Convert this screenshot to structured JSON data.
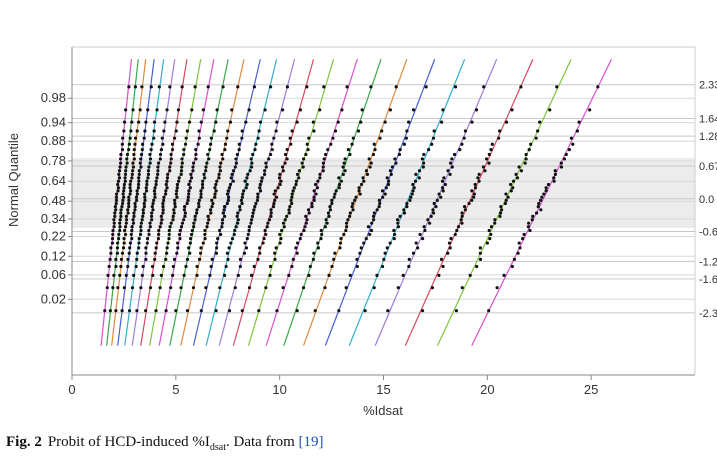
{
  "chart_data": {
    "type": "scatter",
    "xlabel": "%Idsat",
    "ylabel": "Normal Quantile",
    "xlim": [
      0,
      30
    ],
    "ylim": [
      -3.6,
      3.1
    ],
    "x_ticks": [
      0,
      5,
      10,
      15,
      20,
      25
    ],
    "probability_ticks": [
      "0.02",
      "0.06",
      "0.12",
      "0.22",
      "0.34",
      "0.48",
      "0.64",
      "0.78",
      "0.88",
      "0.94",
      "0.98"
    ],
    "z_ticks": [
      "2.33",
      "1.64",
      "1.28",
      "0.67",
      "0.0",
      "-0.67",
      "-1.28",
      "-1.64",
      "-2.33"
    ],
    "point_color": "#111111",
    "fit_line_colors": [
      "#d94fd0",
      "#3aa84a",
      "#e08a3c",
      "#4a5fd6",
      "#2fb0c8",
      "#a07cd8",
      "#d9495a",
      "#7fc43a"
    ],
    "series": [
      {
        "median": 2.15,
        "spread": 0.25
      },
      {
        "median": 2.45,
        "spread": 0.26
      },
      {
        "median": 2.75,
        "spread": 0.28
      },
      {
        "median": 3.1,
        "spread": 0.3
      },
      {
        "median": 3.5,
        "spread": 0.32
      },
      {
        "median": 3.95,
        "spread": 0.35
      },
      {
        "median": 4.45,
        "spread": 0.38
      },
      {
        "median": 5.0,
        "spread": 0.42
      },
      {
        "median": 5.55,
        "spread": 0.45
      },
      {
        "median": 6.15,
        "spread": 0.48
      },
      {
        "median": 6.8,
        "spread": 0.52
      },
      {
        "median": 7.5,
        "spread": 0.55
      },
      {
        "median": 8.2,
        "spread": 0.58
      },
      {
        "median": 8.95,
        "spread": 0.62
      },
      {
        "median": 9.75,
        "spread": 0.66
      },
      {
        "median": 10.6,
        "spread": 0.7
      },
      {
        "median": 11.6,
        "spread": 0.75
      },
      {
        "median": 12.6,
        "spread": 0.8
      },
      {
        "median": 13.7,
        "spread": 0.85
      },
      {
        "median": 14.9,
        "spread": 0.9
      },
      {
        "median": 16.2,
        "spread": 0.95
      },
      {
        "median": 17.6,
        "spread": 1.0
      },
      {
        "median": 19.2,
        "spread": 1.05
      },
      {
        "median": 20.9,
        "spread": 1.1
      },
      {
        "median": 22.7,
        "spread": 1.15
      }
    ]
  },
  "caption": {
    "label": "Fig. 2",
    "text_before": "Probit of HCD-induced %I",
    "subscript": "dsat",
    "text_after": ". Data from ",
    "citation": "[19]"
  }
}
